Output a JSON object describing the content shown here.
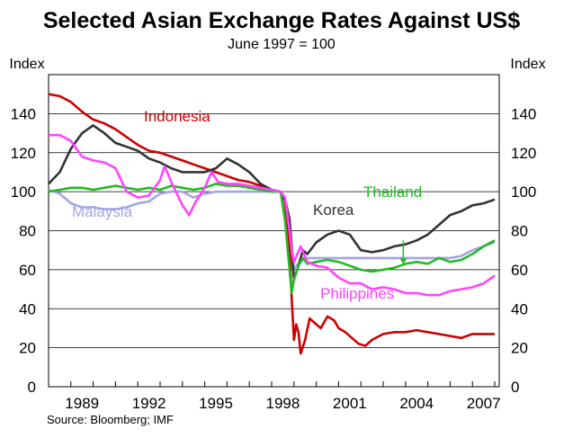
{
  "chart_data": {
    "type": "line",
    "title": "Selected Asian Exchange Rates Against US$",
    "subtitle": "June 1997 = 100",
    "ylabel_left": "Index",
    "ylabel_right": "Index",
    "ylim": [
      0,
      160
    ],
    "yticks": [
      0,
      20,
      40,
      60,
      80,
      100,
      120,
      140
    ],
    "xlim": [
      1987.0,
      2007.2
    ],
    "xticks": [
      {
        "value": 1989,
        "label": "1989"
      },
      {
        "value": 1992,
        "label": "1992"
      },
      {
        "value": 1995,
        "label": "1995"
      },
      {
        "value": 1998,
        "label": "1998"
      },
      {
        "value": 2001,
        "label": "2001"
      },
      {
        "value": 2004,
        "label": "2004"
      },
      {
        "value": 2007,
        "label": "2007"
      }
    ],
    "grid": true,
    "source": "Source: Bloomberg; IMF",
    "series": [
      {
        "name": "Malaysia",
        "color": "#a4a4e6",
        "label_pos": "left",
        "points": [
          [
            1987.0,
            101
          ],
          [
            1987.5,
            99
          ],
          [
            1988.0,
            94
          ],
          [
            1988.5,
            92
          ],
          [
            1989.0,
            92
          ],
          [
            1989.5,
            91
          ],
          [
            1990.0,
            91
          ],
          [
            1990.5,
            92
          ],
          [
            1991.0,
            94
          ],
          [
            1991.5,
            95
          ],
          [
            1992.0,
            99
          ],
          [
            1992.5,
            100
          ],
          [
            1993.0,
            100
          ],
          [
            1993.5,
            97
          ],
          [
            1994.0,
            99
          ],
          [
            1994.5,
            100
          ],
          [
            1995.0,
            100
          ],
          [
            1995.5,
            100
          ],
          [
            1996.0,
            100
          ],
          [
            1996.5,
            100
          ],
          [
            1997.0,
            100
          ],
          [
            1997.4,
            100
          ],
          [
            1997.6,
            92
          ],
          [
            1997.8,
            72
          ],
          [
            1997.95,
            60
          ],
          [
            1998.1,
            62
          ],
          [
            1998.3,
            64
          ],
          [
            1998.5,
            66
          ],
          [
            1999.0,
            66
          ],
          [
            2000.0,
            66
          ],
          [
            2001.0,
            66
          ],
          [
            2002.0,
            66
          ],
          [
            2003.0,
            66
          ],
          [
            2004.0,
            66
          ],
          [
            2005.0,
            66
          ],
          [
            2005.5,
            67
          ],
          [
            2006.0,
            70
          ],
          [
            2006.5,
            72
          ],
          [
            2007.0,
            74
          ]
        ]
      },
      {
        "name": "Indonesia",
        "color": "#cc0000",
        "label_pos": "upper-middle",
        "points": [
          [
            1987.0,
            150
          ],
          [
            1987.5,
            149
          ],
          [
            1988.0,
            146
          ],
          [
            1988.5,
            141
          ],
          [
            1989.0,
            137
          ],
          [
            1989.5,
            135
          ],
          [
            1990.0,
            132
          ],
          [
            1990.5,
            128
          ],
          [
            1991.0,
            124
          ],
          [
            1991.5,
            121
          ],
          [
            1992.0,
            120
          ],
          [
            1992.5,
            118
          ],
          [
            1993.0,
            116
          ],
          [
            1993.5,
            114
          ],
          [
            1994.0,
            112
          ],
          [
            1994.5,
            110
          ],
          [
            1995.0,
            108
          ],
          [
            1995.5,
            106
          ],
          [
            1996.0,
            105
          ],
          [
            1996.5,
            103
          ],
          [
            1997.0,
            101
          ],
          [
            1997.4,
            100
          ],
          [
            1997.6,
            95
          ],
          [
            1997.8,
            70
          ],
          [
            1997.9,
            45
          ],
          [
            1998.0,
            24
          ],
          [
            1998.1,
            32
          ],
          [
            1998.2,
            28
          ],
          [
            1998.3,
            17
          ],
          [
            1998.5,
            24
          ],
          [
            1998.7,
            35
          ],
          [
            1999.0,
            32
          ],
          [
            1999.2,
            30
          ],
          [
            1999.5,
            36
          ],
          [
            1999.8,
            34
          ],
          [
            2000.0,
            30
          ],
          [
            2000.3,
            28
          ],
          [
            2000.6,
            25
          ],
          [
            2000.9,
            22
          ],
          [
            2001.2,
            21
          ],
          [
            2001.5,
            24
          ],
          [
            2002.0,
            27
          ],
          [
            2002.5,
            28
          ],
          [
            2003.0,
            28
          ],
          [
            2003.5,
            29
          ],
          [
            2004.0,
            28
          ],
          [
            2004.5,
            27
          ],
          [
            2005.0,
            26
          ],
          [
            2005.5,
            25
          ],
          [
            2006.0,
            27
          ],
          [
            2006.5,
            27
          ],
          [
            2007.0,
            27
          ]
        ]
      },
      {
        "name": "Korea",
        "color": "#333333",
        "label_pos": "right-middle",
        "points": [
          [
            1987.0,
            104
          ],
          [
            1987.5,
            110
          ],
          [
            1988.0,
            122
          ],
          [
            1988.5,
            130
          ],
          [
            1989.0,
            134
          ],
          [
            1989.5,
            130
          ],
          [
            1990.0,
            125
          ],
          [
            1990.5,
            123
          ],
          [
            1991.0,
            121
          ],
          [
            1991.5,
            117
          ],
          [
            1992.0,
            115
          ],
          [
            1992.5,
            112
          ],
          [
            1993.0,
            110
          ],
          [
            1993.5,
            110
          ],
          [
            1994.0,
            110
          ],
          [
            1994.5,
            112
          ],
          [
            1995.0,
            117
          ],
          [
            1995.5,
            114
          ],
          [
            1996.0,
            110
          ],
          [
            1996.5,
            104
          ],
          [
            1997.0,
            101
          ],
          [
            1997.4,
            100
          ],
          [
            1997.6,
            96
          ],
          [
            1997.8,
            86
          ],
          [
            1997.9,
            72
          ],
          [
            1998.0,
            55
          ],
          [
            1998.2,
            62
          ],
          [
            1998.4,
            70
          ],
          [
            1998.6,
            68
          ],
          [
            1999.0,
            74
          ],
          [
            1999.5,
            78
          ],
          [
            2000.0,
            80
          ],
          [
            2000.5,
            78
          ],
          [
            2001.0,
            70
          ],
          [
            2001.5,
            69
          ],
          [
            2002.0,
            70
          ],
          [
            2002.5,
            72
          ],
          [
            2003.0,
            73
          ],
          [
            2003.5,
            75
          ],
          [
            2004.0,
            78
          ],
          [
            2004.5,
            83
          ],
          [
            2005.0,
            88
          ],
          [
            2005.5,
            90
          ],
          [
            2006.0,
            93
          ],
          [
            2006.5,
            94
          ],
          [
            2007.0,
            96
          ]
        ]
      },
      {
        "name": "Thailand",
        "color": "#22bb22",
        "label_pos": "right-upper",
        "points": [
          [
            1987.0,
            100
          ],
          [
            1987.5,
            101
          ],
          [
            1988.0,
            102
          ],
          [
            1988.5,
            102
          ],
          [
            1989.0,
            101
          ],
          [
            1989.5,
            102
          ],
          [
            1990.0,
            103
          ],
          [
            1990.5,
            102
          ],
          [
            1991.0,
            101
          ],
          [
            1991.5,
            102
          ],
          [
            1992.0,
            101
          ],
          [
            1992.5,
            103
          ],
          [
            1993.0,
            102
          ],
          [
            1993.5,
            101
          ],
          [
            1994.0,
            102
          ],
          [
            1994.5,
            104
          ],
          [
            1995.0,
            103
          ],
          [
            1995.5,
            103
          ],
          [
            1996.0,
            102
          ],
          [
            1996.5,
            101
          ],
          [
            1997.0,
            100
          ],
          [
            1997.4,
            100
          ],
          [
            1997.6,
            85
          ],
          [
            1997.8,
            60
          ],
          [
            1997.9,
            48
          ],
          [
            1998.0,
            55
          ],
          [
            1998.2,
            62
          ],
          [
            1998.4,
            66
          ],
          [
            1998.6,
            63
          ],
          [
            1999.0,
            64
          ],
          [
            1999.5,
            65
          ],
          [
            2000.0,
            64
          ],
          [
            2000.5,
            62
          ],
          [
            2001.0,
            60
          ],
          [
            2001.5,
            59
          ],
          [
            2002.0,
            60
          ],
          [
            2002.5,
            61
          ],
          [
            2003.0,
            63
          ],
          [
            2003.5,
            64
          ],
          [
            2004.0,
            63
          ],
          [
            2004.5,
            66
          ],
          [
            2005.0,
            64
          ],
          [
            2005.5,
            65
          ],
          [
            2006.0,
            68
          ],
          [
            2006.5,
            72
          ],
          [
            2007.0,
            75
          ]
        ]
      },
      {
        "name": "Philippines",
        "color": "#ff44ff",
        "label_pos": "bottom-middle",
        "points": [
          [
            1987.0,
            129
          ],
          [
            1987.5,
            129
          ],
          [
            1988.0,
            126
          ],
          [
            1988.5,
            118
          ],
          [
            1989.0,
            116
          ],
          [
            1989.5,
            115
          ],
          [
            1990.0,
            112
          ],
          [
            1990.5,
            100
          ],
          [
            1991.0,
            97
          ],
          [
            1991.5,
            98
          ],
          [
            1992.0,
            106
          ],
          [
            1992.2,
            113
          ],
          [
            1992.5,
            105
          ],
          [
            1993.0,
            93
          ],
          [
            1993.3,
            88
          ],
          [
            1993.6,
            95
          ],
          [
            1994.0,
            102
          ],
          [
            1994.3,
            110
          ],
          [
            1994.6,
            105
          ],
          [
            1995.0,
            104
          ],
          [
            1995.5,
            104
          ],
          [
            1996.0,
            103
          ],
          [
            1996.5,
            102
          ],
          [
            1997.0,
            101
          ],
          [
            1997.4,
            100
          ],
          [
            1997.6,
            97
          ],
          [
            1997.8,
            80
          ],
          [
            1997.9,
            70
          ],
          [
            1998.0,
            64
          ],
          [
            1998.3,
            72
          ],
          [
            1998.6,
            64
          ],
          [
            1999.0,
            62
          ],
          [
            1999.5,
            61
          ],
          [
            2000.0,
            56
          ],
          [
            2000.5,
            53
          ],
          [
            2001.0,
            53
          ],
          [
            2001.5,
            50
          ],
          [
            2002.0,
            51
          ],
          [
            2002.5,
            50
          ],
          [
            2003.0,
            48
          ],
          [
            2003.5,
            48
          ],
          [
            2004.0,
            47
          ],
          [
            2004.5,
            47
          ],
          [
            2005.0,
            49
          ],
          [
            2005.5,
            50
          ],
          [
            2006.0,
            51
          ],
          [
            2006.5,
            53
          ],
          [
            2007.0,
            57
          ]
        ]
      }
    ]
  }
}
